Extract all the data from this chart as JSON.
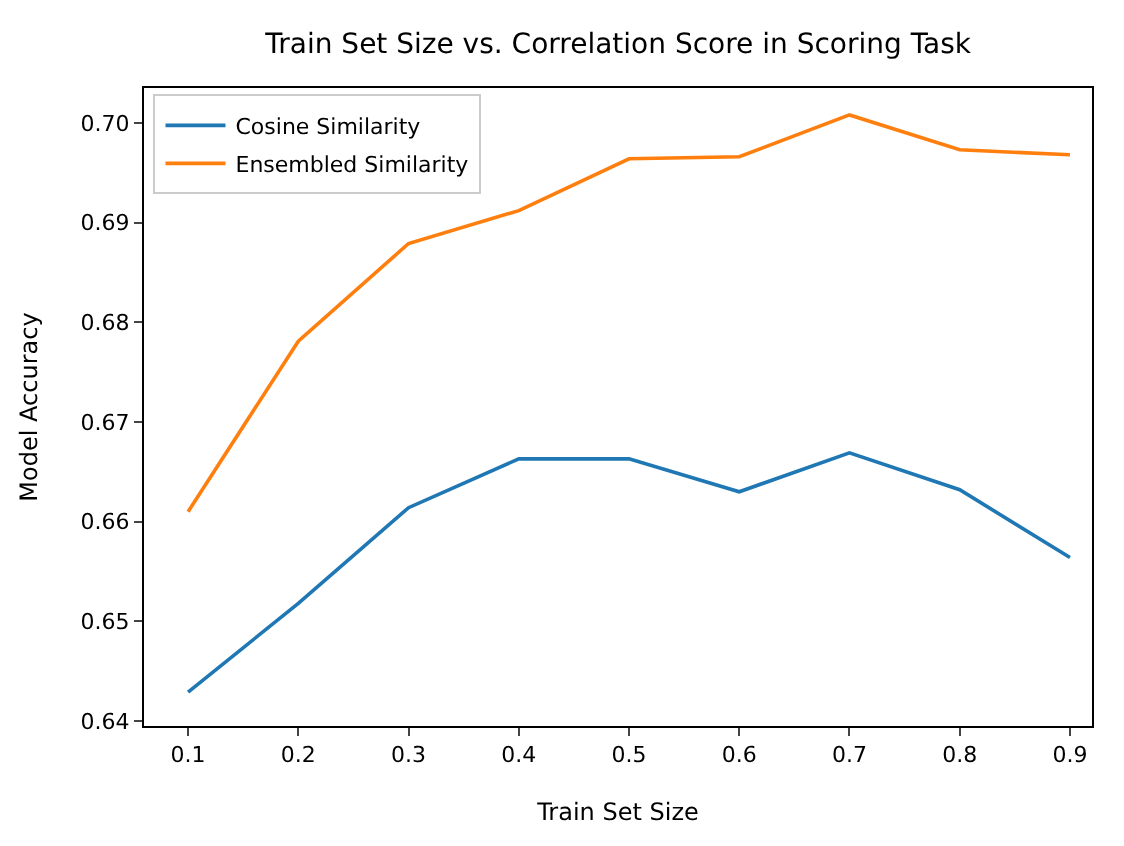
{
  "chart_data": {
    "type": "line",
    "title": "Train Set Size vs. Correlation Score in Scoring Task",
    "xlabel": "Train Set Size",
    "ylabel": "Model Accuracy",
    "x": [
      0.1,
      0.2,
      0.3,
      0.4,
      0.5,
      0.6,
      0.7,
      0.8,
      0.9
    ],
    "series": [
      {
        "name": "Cosine Similarity",
        "color": "#1f77b4",
        "values": [
          0.6429,
          0.6518,
          0.6614,
          0.6663,
          0.6663,
          0.663,
          0.6669,
          0.6632,
          0.6564
        ]
      },
      {
        "name": "Ensembled Similarity",
        "color": "#ff7f0e",
        "values": [
          0.661,
          0.6781,
          0.6879,
          0.6912,
          0.6964,
          0.6966,
          0.7008,
          0.6973,
          0.6968
        ]
      }
    ],
    "xlim": [
      0.06,
      0.92
    ],
    "xticks": [
      {
        "value": 0.1,
        "label": "0.1"
      },
      {
        "value": 0.2,
        "label": "0.2"
      },
      {
        "value": 0.3,
        "label": "0.3"
      },
      {
        "value": 0.4,
        "label": "0.4"
      },
      {
        "value": 0.5,
        "label": "0.5"
      },
      {
        "value": 0.6,
        "label": "0.6"
      },
      {
        "value": 0.7,
        "label": "0.7"
      },
      {
        "value": 0.8,
        "label": "0.8"
      },
      {
        "value": 0.9,
        "label": "0.9"
      }
    ],
    "ylim": [
      0.6395,
      0.7035
    ],
    "yticks": [
      {
        "value": 0.64,
        "label": "0.64"
      },
      {
        "value": 0.65,
        "label": "0.65"
      },
      {
        "value": 0.66,
        "label": "0.66"
      },
      {
        "value": 0.67,
        "label": "0.67"
      },
      {
        "value": 0.68,
        "label": "0.68"
      },
      {
        "value": 0.69,
        "label": "0.69"
      },
      {
        "value": 0.7,
        "label": "0.70"
      }
    ],
    "legend": "top left",
    "marker": "none",
    "line_style": "solid"
  }
}
